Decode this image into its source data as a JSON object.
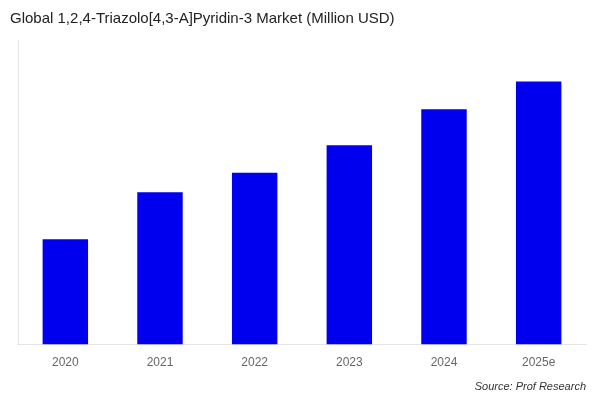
{
  "chart_data": {
    "type": "bar",
    "title": "Global 1,2,4-Triazolo[4,3-A]Pyridin-3 Market (Million USD)",
    "categories": [
      "2020",
      "2021",
      "2022",
      "2023",
      "2024",
      "2025e"
    ],
    "values": [
      38,
      55,
      62,
      72,
      85,
      95
    ],
    "color": "#0000ee",
    "ylim": [
      0,
      110
    ],
    "grid": false,
    "tick_labels": "x",
    "annotation": "Source: Prof Research"
  }
}
